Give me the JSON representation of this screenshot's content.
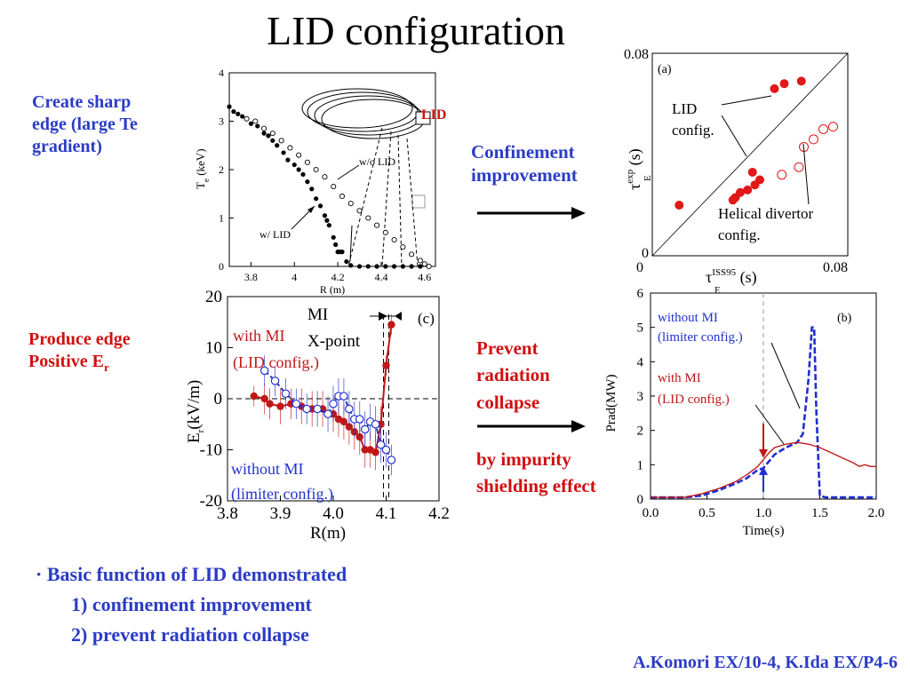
{
  "slide": {
    "title": "LID configuration",
    "left_labels": {
      "sharp_edge": [
        "Create sharp",
        "edge (large Te",
        "gradient)"
      ],
      "positive_er": [
        "Produce edge",
        "Positive E",
        "r"
      ]
    },
    "middle_labels": {
      "confinement": [
        "Confinement",
        "improvement"
      ],
      "radiation": [
        "Prevent",
        "radiation",
        "collapse"
      ],
      "shielding": [
        "by impurity",
        "shielding effect"
      ]
    },
    "bullets": {
      "marker": "·",
      "main": "Basic function of LID demonstrated",
      "item1": "1) confinement improvement",
      "item2": "2) prevent radiation collapse"
    },
    "credit": "A.Komori EX/10-4, K.Ida EX/P4-6"
  },
  "chart_data": [
    {
      "id": "te-profile",
      "type": "scatter",
      "ylabel": "T",
      "ylabel_sub": "e",
      "ylabel_unit": "(keV)",
      "xlabel": "R (m)",
      "xlim": [
        3.7,
        4.65
      ],
      "ylim": [
        0,
        4
      ],
      "xticks": [
        "3.8",
        "4",
        "4.2",
        "4.4",
        "4.6"
      ],
      "xtick_values": [
        3.8,
        4.0,
        4.2,
        4.4,
        4.6
      ],
      "yticks": [
        "0",
        "1",
        "2",
        "3",
        "4"
      ],
      "annotations": {
        "lid": "LID",
        "wo_lid": "w/o LID",
        "w_lid": "w/ LID"
      },
      "series": [
        {
          "name": "w/ LID",
          "marker": "filled",
          "x": [
            3.7,
            3.72,
            3.74,
            3.76,
            3.78,
            3.8,
            3.83,
            3.86,
            3.88,
            3.9,
            3.92,
            3.95,
            3.97,
            4.0,
            4.02,
            4.04,
            4.06,
            4.08,
            4.1,
            4.12,
            4.14,
            4.15,
            4.16,
            4.18,
            4.19,
            4.2,
            4.21,
            4.22,
            4.24,
            4.26,
            4.3,
            4.34,
            4.38,
            4.42,
            4.46,
            4.5,
            4.54,
            4.58,
            4.62
          ],
          "y": [
            3.3,
            3.2,
            3.15,
            3.1,
            3.05,
            2.95,
            2.9,
            2.75,
            2.7,
            2.6,
            2.5,
            2.35,
            2.2,
            2.1,
            2.0,
            1.9,
            1.75,
            1.6,
            1.4,
            1.25,
            1.05,
            0.95,
            0.85,
            0.6,
            0.45,
            0.3,
            0.3,
            0.3,
            0.1,
            0.02,
            0.0,
            0.0,
            0.0,
            0.0,
            0.0,
            0.0,
            0.0,
            0.0,
            0.0
          ]
        },
        {
          "name": "w/o LID",
          "marker": "open",
          "x": [
            3.78,
            3.82,
            3.86,
            3.9,
            3.94,
            3.98,
            4.02,
            4.06,
            4.1,
            4.14,
            4.18,
            4.22,
            4.26,
            4.3,
            4.34,
            4.38,
            4.42,
            4.46,
            4.5,
            4.54,
            4.58,
            4.6,
            4.62
          ],
          "y": [
            3.05,
            3.0,
            2.85,
            2.75,
            2.6,
            2.45,
            2.3,
            2.15,
            2.0,
            1.85,
            1.65,
            1.45,
            1.3,
            1.15,
            1.0,
            0.85,
            0.7,
            0.55,
            0.4,
            0.25,
            0.12,
            0.05,
            0.0
          ]
        }
      ]
    },
    {
      "id": "tau-scaling",
      "type": "scatter",
      "panel": "(a)",
      "xlim": [
        0,
        0.08
      ],
      "ylim": [
        0,
        0.08
      ],
      "xtick_labels": [
        "0",
        "0.08"
      ],
      "ytick_labels": [
        "0",
        "0.08"
      ],
      "xlabel": {
        "base": "τ",
        "sub": "E",
        "sup": "ISS95",
        "unit": "(s)"
      },
      "ylabel": {
        "base": "τ",
        "sub": "E",
        "sup": "exp",
        "unit": "(s)"
      },
      "annotations": {
        "lid": [
          "LID",
          "config."
        ],
        "helical": [
          "Helical divertor",
          "config."
        ]
      },
      "series": [
        {
          "name": "LID config.",
          "marker": "filled",
          "x": [
            0.011,
            0.033,
            0.034,
            0.036,
            0.039,
            0.042,
            0.044,
            0.041,
            0.05,
            0.054,
            0.061
          ],
          "y": [
            0.02,
            0.022,
            0.023,
            0.025,
            0.026,
            0.028,
            0.03,
            0.033,
            0.066,
            0.068,
            0.069
          ]
        },
        {
          "name": "Helical divertor config.",
          "marker": "open",
          "x": [
            0.053,
            0.06,
            0.062,
            0.066,
            0.07,
            0.074
          ],
          "y": [
            0.032,
            0.035,
            0.043,
            0.046,
            0.05,
            0.051
          ]
        }
      ]
    },
    {
      "id": "er-profile",
      "type": "line",
      "panel": "(c)",
      "xlabel": "R(m)",
      "ylabel": "E",
      "ylabel_sub": "r",
      "ylabel_unit": "(kV/m)",
      "xlim": [
        3.8,
        4.2
      ],
      "ylim": [
        -20,
        20
      ],
      "xticks": [
        "3.8",
        "3.9",
        "4.0",
        "4.1",
        "4.2"
      ],
      "xtick_values": [
        3.8,
        3.9,
        4.0,
        4.1,
        4.2
      ],
      "yticks": [
        "-20",
        "-10",
        "0",
        "10",
        "20"
      ],
      "ytick_values": [
        -20,
        -10,
        0,
        10,
        20
      ],
      "annotations": {
        "mi": "MI",
        "xpoint": "X-point",
        "with_mi": [
          "with MI",
          "(LID config.)"
        ],
        "without_mi": [
          "without MI",
          "(limiter config.)"
        ]
      },
      "vlines": [
        4.095,
        4.105
      ],
      "series": [
        {
          "name": "with MI (LID config.)",
          "color": "#c01818",
          "x": [
            3.85,
            3.87,
            3.88,
            3.9,
            3.92,
            3.94,
            3.96,
            3.98,
            4.0,
            4.01,
            4.02,
            4.03,
            4.04,
            4.05,
            4.06,
            4.07,
            4.08,
            4.09,
            4.1,
            4.11
          ],
          "y": [
            0.5,
            0,
            -1,
            -1.5,
            -1,
            -1.5,
            -2,
            -2,
            -3,
            -4,
            -4.5,
            -5.5,
            -6.5,
            -7.5,
            -10,
            -10,
            -10.5,
            -5,
            6.5,
            14.5
          ],
          "err": [
            2,
            3,
            3,
            3.5,
            3,
            3.5,
            3.5,
            3.5,
            3.5,
            3.5,
            3.5,
            3.5,
            3.5,
            3.5,
            3.5,
            3.5,
            3.5,
            3.5,
            2,
            2
          ]
        },
        {
          "name": "without MI (limiter config.)",
          "color": "#2233cc",
          "x": [
            3.87,
            3.89,
            3.91,
            3.93,
            3.95,
            3.97,
            3.99,
            4.0,
            4.01,
            4.02,
            4.03,
            4.04,
            4.05,
            4.06,
            4.07,
            4.08,
            4.09,
            4.1,
            4.11
          ],
          "y": [
            5.5,
            3.5,
            1,
            -1,
            -2,
            -2,
            -3,
            -1,
            0.5,
            0.5,
            -2,
            -4,
            -4,
            -6,
            -4.5,
            -5,
            -9,
            -10,
            -12
          ],
          "err": [
            3,
            3,
            3,
            3,
            3,
            3.5,
            3.5,
            3.5,
            3.5,
            3.5,
            3.5,
            3.5,
            3.5,
            3.5,
            3.5,
            3.5,
            3.5,
            3.5,
            3
          ]
        }
      ]
    },
    {
      "id": "prad-trace",
      "type": "line",
      "panel": "(b)",
      "xlabel": "Time(s)",
      "ylabel": "Prad(MW)",
      "xlim": [
        0.0,
        2.0
      ],
      "ylim": [
        0,
        6
      ],
      "xticks": [
        "0.0",
        "0.5",
        "1.0",
        "1.5",
        "2.0"
      ],
      "xtick_values": [
        0.0,
        0.5,
        1.0,
        1.5,
        2.0
      ],
      "yticks": [
        "0",
        "1",
        "2",
        "3",
        "4",
        "5",
        "6"
      ],
      "annotations": {
        "without_mi": [
          "without MI",
          "(limiter config.)"
        ],
        "with_mi": [
          "with MI",
          "(LID config.)"
        ]
      },
      "vline": 1.0,
      "series": [
        {
          "name": "without MI (limiter config.)",
          "color": "#1f2fd0",
          "style": "dashed",
          "x": [
            0.0,
            0.3,
            0.45,
            0.6,
            0.75,
            0.85,
            0.95,
            1.0,
            1.05,
            1.1,
            1.2,
            1.3,
            1.35,
            1.4,
            1.43,
            1.45,
            1.47,
            1.5,
            1.55,
            1.7,
            2.0
          ],
          "y": [
            0.05,
            0.05,
            0.1,
            0.25,
            0.45,
            0.6,
            0.85,
            0.9,
            1.1,
            1.3,
            1.5,
            1.65,
            1.9,
            3.5,
            5.0,
            5.0,
            2.5,
            0.1,
            0.05,
            0.05,
            0.05
          ]
        },
        {
          "name": "with MI (LID config.)",
          "color": "#c01818",
          "style": "solid",
          "x": [
            0.0,
            0.3,
            0.45,
            0.6,
            0.75,
            0.85,
            0.95,
            1.0,
            1.05,
            1.1,
            1.2,
            1.3,
            1.4,
            1.5,
            1.6,
            1.7,
            1.8,
            1.85,
            1.9,
            1.95,
            2.0
          ],
          "y": [
            0.05,
            0.05,
            0.15,
            0.3,
            0.5,
            0.7,
            0.95,
            1.15,
            1.35,
            1.5,
            1.6,
            1.65,
            1.6,
            1.5,
            1.35,
            1.2,
            1.05,
            0.95,
            1.0,
            0.95,
            0.95
          ]
        }
      ]
    }
  ]
}
